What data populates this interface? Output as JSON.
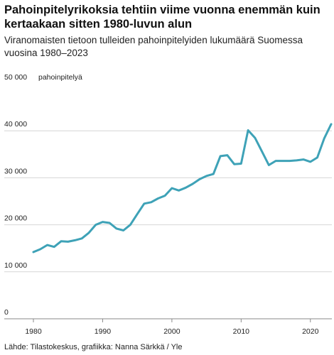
{
  "header": {
    "title": "Pahoinpitelyrikoksia tehtiin viime vuonna enemmän kuin kertaakaan sitten 1980-luvun alun",
    "subtitle": "Viranomaisten tietoon tulleiden pahoinpitelyiden lukumäärä Suomessa vuosina 1980–2023"
  },
  "footer": {
    "source": "Lähde: Tilastokeskus, grafiikka: Nanna Särkkä / Yle"
  },
  "chart_data": {
    "type": "line",
    "ylabel": "pahoinpitelyä",
    "ylim": [
      0,
      50000
    ],
    "xlim": [
      1980,
      2023
    ],
    "yticks": [
      0,
      10000,
      20000,
      30000,
      40000,
      50000
    ],
    "ytick_labels": [
      "0",
      "10 000",
      "20 000",
      "30 000",
      "40 000",
      "50 000"
    ],
    "xticks": [
      1980,
      1990,
      2000,
      2010,
      2020
    ],
    "xtick_labels": [
      "1980",
      "1990",
      "2000",
      "2010",
      "2020"
    ],
    "grid": true,
    "line_color": "#3ea2b7",
    "series": [
      {
        "x": [
          1980,
          1981,
          1982,
          1983,
          1984,
          1985,
          1986,
          1987,
          1988,
          1989,
          1990,
          1991,
          1992,
          1993,
          1994,
          1995,
          1996,
          1997,
          1998,
          1999,
          2000,
          2001,
          2002,
          2003,
          2004,
          2005,
          2006,
          2007,
          2008,
          2009,
          2010,
          2011,
          2012,
          2013,
          2014,
          2015,
          2016,
          2017,
          2018,
          2019,
          2020,
          2021,
          2022,
          2023
        ],
        "values": [
          14200,
          14800,
          15700,
          15300,
          16500,
          16400,
          16700,
          17100,
          18300,
          20000,
          20600,
          20400,
          19200,
          18800,
          20000,
          22300,
          24500,
          24800,
          25600,
          26200,
          27800,
          27300,
          27900,
          28700,
          29700,
          30400,
          30800,
          34600,
          34800,
          32900,
          33000,
          40100,
          38500,
          35600,
          32700,
          33600,
          33600,
          33600,
          33700,
          33900,
          33400,
          34300,
          38400,
          41400
        ]
      }
    ]
  }
}
